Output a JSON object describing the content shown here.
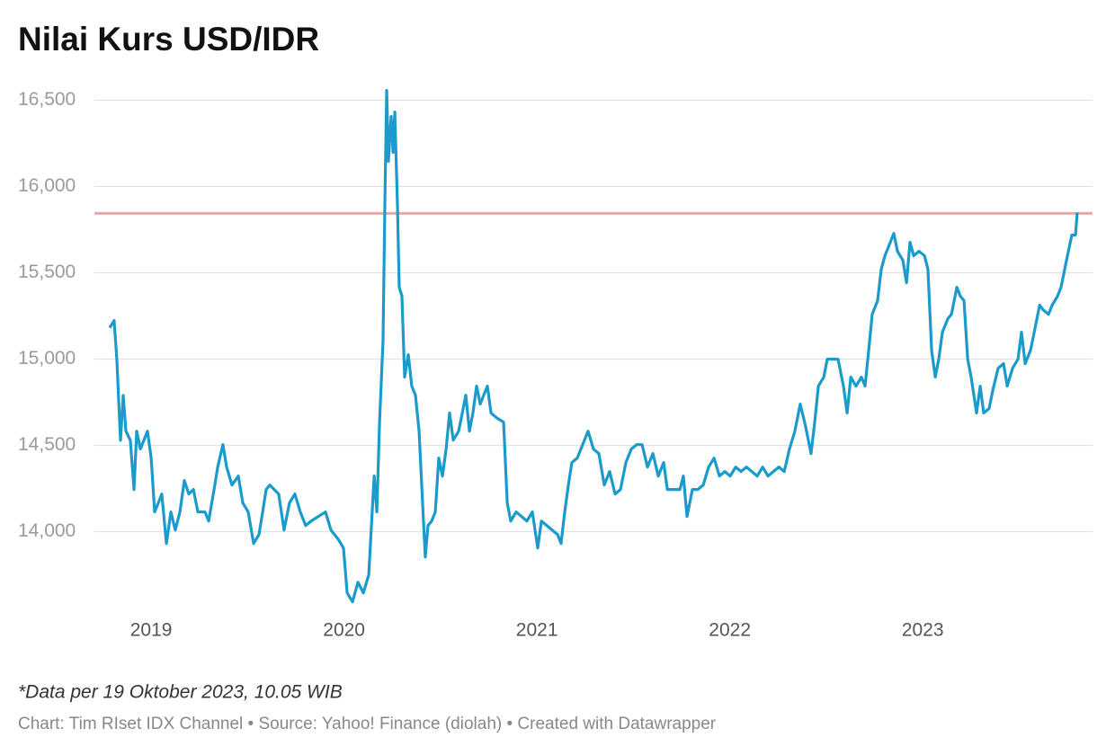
{
  "chart_data": {
    "type": "line",
    "title": "Nilai Kurs USD/IDR",
    "note": "*Data per 19 Oktober 2023, 10.05 WIB",
    "source": "Chart: Tim RIset IDX Channel • Source: Yahoo! Finance (diolah) • Created with Datawrapper",
    "xlim": [
      2018.785,
      2023.801
    ],
    "xticks": [
      2019,
      2020,
      2021,
      2022,
      2023
    ],
    "ylim": [
      13540,
      16560
    ],
    "yticks": [
      {
        "value": 14000,
        "label": "14,000"
      },
      {
        "value": 14500,
        "label": "14,500"
      },
      {
        "value": 15000,
        "label": "15,000"
      },
      {
        "value": 15500,
        "label": "15,500"
      },
      {
        "value": 16000,
        "label": "16,000"
      },
      {
        "value": 16500,
        "label": "16,500"
      }
    ],
    "grid": true,
    "reference_line": {
      "value": 15845,
      "color": "#e8a9a9"
    },
    "series": [
      {
        "color": "#1b9bcb",
        "x": [
          2018.785,
          2018.808,
          2018.822,
          2018.841,
          2018.855,
          2018.869,
          2018.892,
          2018.911,
          2018.925,
          2018.944,
          2018.962,
          2018.981,
          2019.0,
          2019.018,
          2019.037,
          2019.055,
          2019.079,
          2019.102,
          2019.125,
          2019.149,
          2019.172,
          2019.195,
          2019.219,
          2019.242,
          2019.279,
          2019.298,
          2019.326,
          2019.345,
          2019.372,
          2019.391,
          2019.419,
          2019.452,
          2019.475,
          2019.503,
          2019.531,
          2019.559,
          2019.578,
          2019.596,
          2019.615,
          2019.638,
          2019.661,
          2019.689,
          2019.717,
          2019.745,
          2019.773,
          2019.801,
          2019.829,
          2019.867,
          2019.904,
          2019.932,
          2019.969,
          2019.997,
          2020.016,
          2020.044,
          2020.072,
          2020.1,
          2020.128,
          2020.156,
          2020.17,
          2020.184,
          2020.202,
          2020.212,
          2020.221,
          2020.23,
          2020.244,
          2020.254,
          2020.263,
          2020.277,
          2020.286,
          2020.3,
          2020.314,
          2020.333,
          2020.351,
          2020.37,
          2020.389,
          2020.407,
          2020.421,
          2020.435,
          2020.454,
          2020.473,
          2020.491,
          2020.51,
          2020.529,
          2020.547,
          2020.566,
          2020.594,
          2020.613,
          2020.631,
          2020.65,
          2020.668,
          2020.687,
          2020.706,
          2020.724,
          2020.743,
          2020.762,
          2020.79,
          2020.827,
          2020.846,
          2020.864,
          2020.892,
          2020.92,
          2020.948,
          2020.976,
          2021.004,
          2021.023,
          2021.051,
          2021.079,
          2021.107,
          2021.125,
          2021.144,
          2021.163,
          2021.181,
          2021.209,
          2021.237,
          2021.265,
          2021.293,
          2021.321,
          2021.349,
          2021.377,
          2021.405,
          2021.433,
          2021.461,
          2021.489,
          2021.517,
          2021.545,
          2021.573,
          2021.601,
          2021.629,
          2021.657,
          2021.676,
          2021.713,
          2021.741,
          2021.759,
          2021.778,
          2021.806,
          2021.834,
          2021.862,
          2021.89,
          2021.918,
          2021.946,
          2021.974,
          2022.002,
          2022.03,
          2022.058,
          2022.086,
          2022.114,
          2022.142,
          2022.17,
          2022.198,
          2022.226,
          2022.254,
          2022.282,
          2022.309,
          2022.337,
          2022.365,
          2022.393,
          2022.421,
          2022.44,
          2022.459,
          2022.487,
          2022.505,
          2022.533,
          2022.561,
          2022.589,
          2022.608,
          2022.627,
          2022.654,
          2022.682,
          2022.701,
          2022.72,
          2022.738,
          2022.766,
          2022.785,
          2022.804,
          2022.832,
          2022.85,
          2022.869,
          2022.897,
          2022.916,
          2022.934,
          2022.953,
          2022.981,
          2023.009,
          2023.027,
          2023.046,
          2023.065,
          2023.083,
          2023.102,
          2023.13,
          2023.149,
          2023.177,
          2023.195,
          2023.214,
          2023.233,
          2023.251,
          2023.279,
          2023.298,
          2023.316,
          2023.344,
          2023.363,
          2023.391,
          2023.419,
          2023.438,
          2023.466,
          2023.494,
          2023.512,
          2023.531,
          2023.559,
          2023.578,
          2023.606,
          2023.624,
          2023.652,
          2023.671,
          2023.699,
          2023.717,
          2023.736,
          2023.755,
          2023.773,
          2023.792,
          2023.801
        ],
        "values": [
          15182,
          15224,
          15000,
          14530,
          14790,
          14583,
          14530,
          14245,
          14583,
          14480,
          14530,
          14583,
          14427,
          14115,
          14167,
          14219,
          13932,
          14115,
          14010,
          14115,
          14297,
          14219,
          14245,
          14115,
          14115,
          14062,
          14245,
          14375,
          14505,
          14375,
          14271,
          14323,
          14167,
          14115,
          13932,
          13984,
          14115,
          14245,
          14271,
          14245,
          14219,
          14010,
          14167,
          14219,
          14115,
          14036,
          14062,
          14089,
          14115,
          14010,
          13958,
          13906,
          13646,
          13594,
          13708,
          13646,
          13750,
          14323,
          14115,
          14635,
          15104,
          15937,
          16557,
          16146,
          16406,
          16198,
          16432,
          15885,
          15417,
          15365,
          14896,
          15026,
          14844,
          14792,
          14583,
          14167,
          13854,
          14036,
          14062,
          14115,
          14427,
          14323,
          14479,
          14688,
          14531,
          14583,
          14688,
          14792,
          14583,
          14688,
          14844,
          14740,
          14792,
          14844,
          14688,
          14661,
          14635,
          14167,
          14062,
          14115,
          14089,
          14062,
          14115,
          13906,
          14062,
          14036,
          14010,
          13984,
          13932,
          14115,
          14271,
          14401,
          14427,
          14505,
          14583,
          14479,
          14453,
          14271,
          14349,
          14219,
          14245,
          14401,
          14479,
          14505,
          14505,
          14375,
          14453,
          14323,
          14401,
          14245,
          14245,
          14245,
          14323,
          14089,
          14245,
          14245,
          14271,
          14375,
          14427,
          14323,
          14349,
          14323,
          14375,
          14349,
          14375,
          14349,
          14323,
          14375,
          14323,
          14349,
          14375,
          14349,
          14479,
          14583,
          14740,
          14609,
          14453,
          14635,
          14844,
          14896,
          15000,
          15000,
          15000,
          14844,
          14688,
          14896,
          14844,
          14896,
          14844,
          15052,
          15260,
          15339,
          15521,
          15599,
          15677,
          15729,
          15625,
          15573,
          15443,
          15677,
          15599,
          15625,
          15599,
          15521,
          15052,
          14896,
          15000,
          15156,
          15234,
          15260,
          15417,
          15365,
          15339,
          15000,
          14896,
          14688,
          14844,
          14688,
          14714,
          14818,
          14948,
          14974,
          14844,
          14948,
          15000,
          15156,
          14974,
          15052,
          15156,
          15313,
          15286,
          15260,
          15313,
          15365,
          15417,
          15521,
          15625,
          15719,
          15719,
          15849
        ]
      }
    ]
  }
}
